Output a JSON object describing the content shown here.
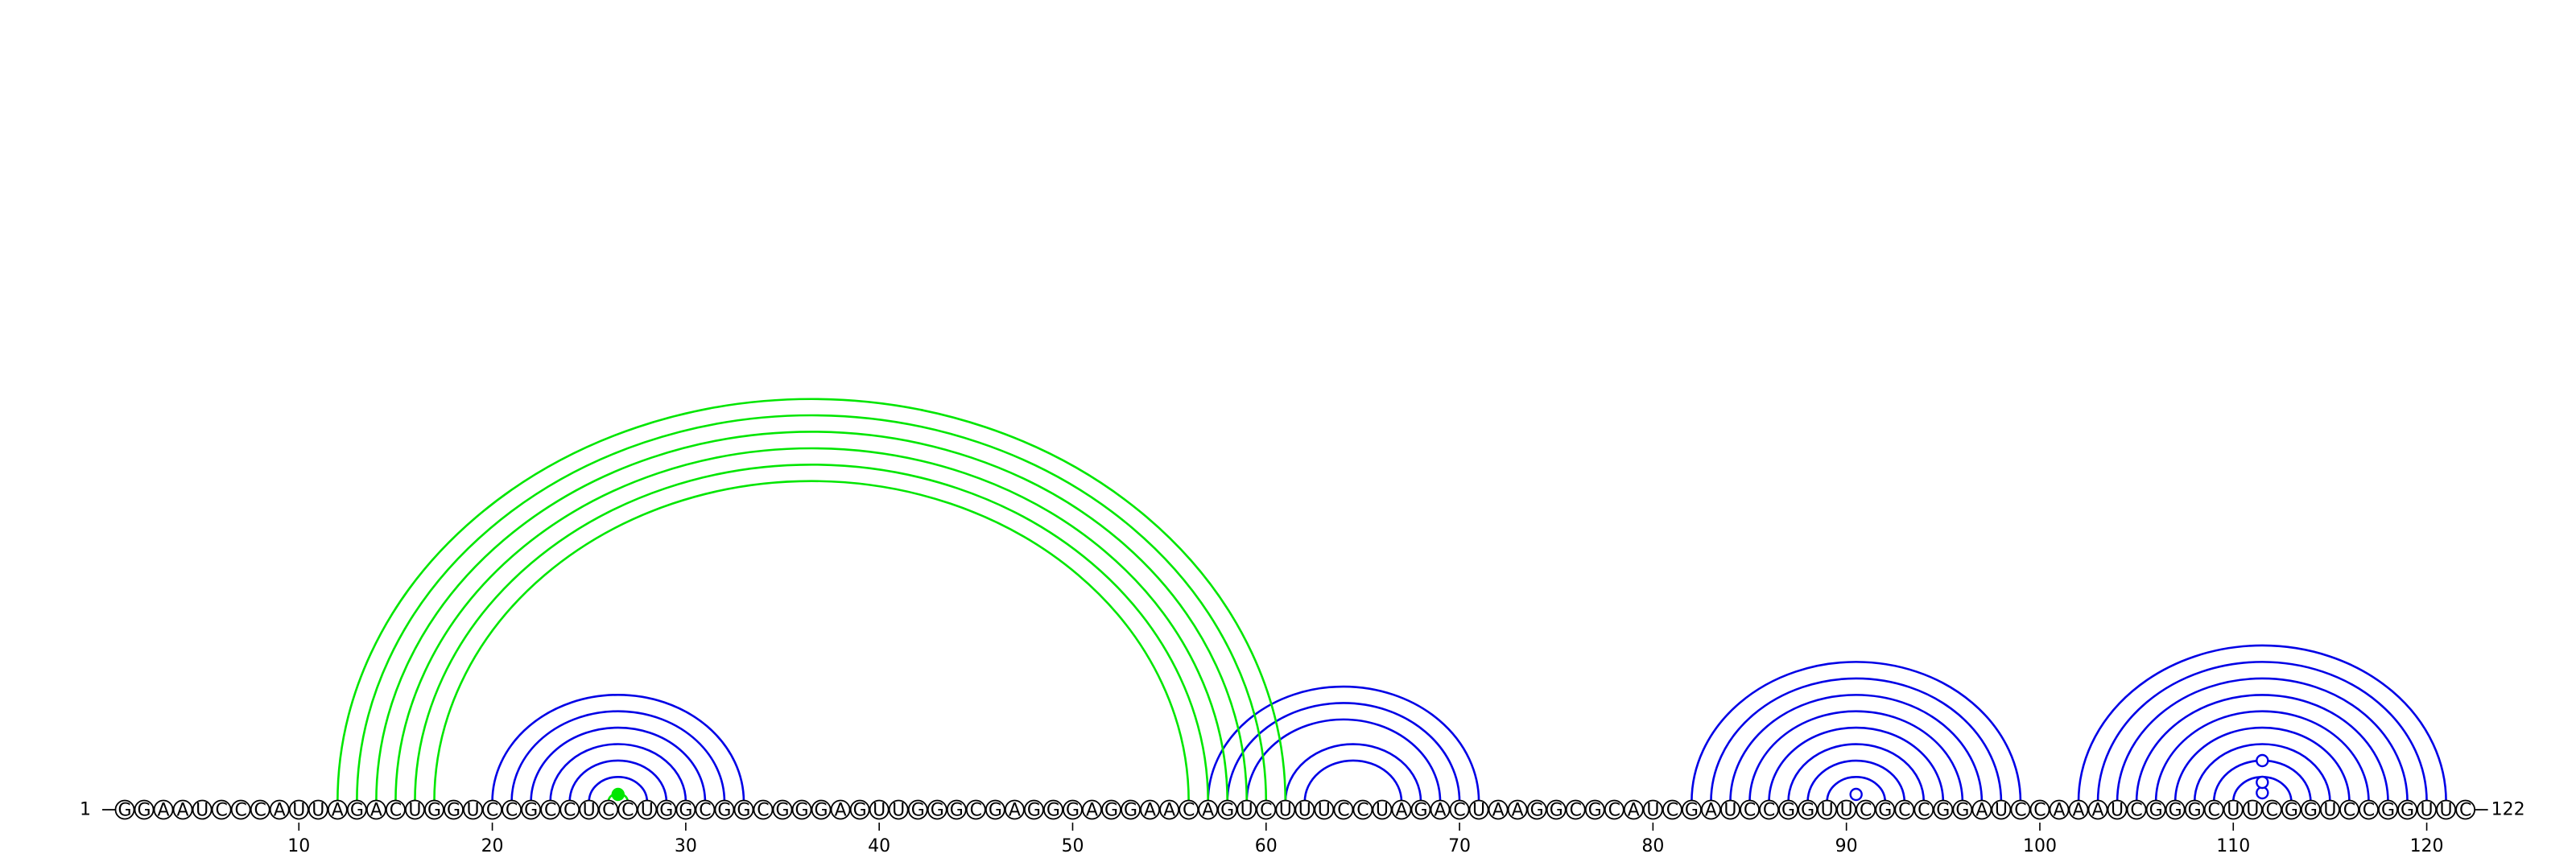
{
  "sequence": "GGAAUCCCAUUAGACUGGUCCGCCUCCUGGCGGCGGGAGUUGGGCGAGGGAGGAACAGUCUUUCCUAGACUAAGGCGCAUCGAUCCGGUUCGCCGGAUCCAAAUCGGGCUUCGGUCCGGUUC",
  "labels": {
    "start": "1",
    "end": "122"
  },
  "ticks": [
    10,
    20,
    30,
    40,
    50,
    60,
    70,
    80,
    90,
    100,
    110,
    120
  ],
  "colors": {
    "blue": "#0000e6",
    "green": "#00e600"
  },
  "pairs": {
    "blue": [
      [
        20,
        33
      ],
      [
        21,
        32
      ],
      [
        22,
        31
      ],
      [
        23,
        30
      ],
      [
        24,
        29
      ],
      [
        25,
        28
      ],
      [
        57,
        71
      ],
      [
        58,
        70
      ],
      [
        59,
        69
      ],
      [
        61,
        68
      ],
      [
        62,
        67
      ],
      [
        82,
        99
      ],
      [
        83,
        98
      ],
      [
        84,
        97
      ],
      [
        85,
        96
      ],
      [
        86,
        95
      ],
      [
        87,
        94
      ],
      [
        88,
        93
      ],
      [
        89,
        92
      ],
      [
        102,
        121
      ],
      [
        103,
        120
      ],
      [
        104,
        119
      ],
      [
        105,
        118
      ],
      [
        106,
        117
      ],
      [
        107,
        116
      ],
      [
        108,
        115
      ],
      [
        109,
        114
      ],
      [
        110,
        113
      ]
    ],
    "green": [
      [
        26,
        27
      ],
      [
        12,
        61
      ],
      [
        13,
        60
      ],
      [
        14,
        59
      ],
      [
        15,
        58
      ],
      [
        16,
        57
      ],
      [
        17,
        56
      ]
    ]
  },
  "markers": [
    {
      "position": 26.5,
      "color": "green",
      "filled": true,
      "height": 0.09
    },
    {
      "position": 90.5,
      "color": "blue",
      "filled": false,
      "height": 0.09
    },
    {
      "position": 111.5,
      "color": "blue",
      "filled": false,
      "height": 0.11
    },
    {
      "position": 111.5,
      "color": "blue",
      "filled": false,
      "height": 0.24
    },
    {
      "position": 111.5,
      "color": "blue",
      "filled": false,
      "height": 0.51
    }
  ]
}
